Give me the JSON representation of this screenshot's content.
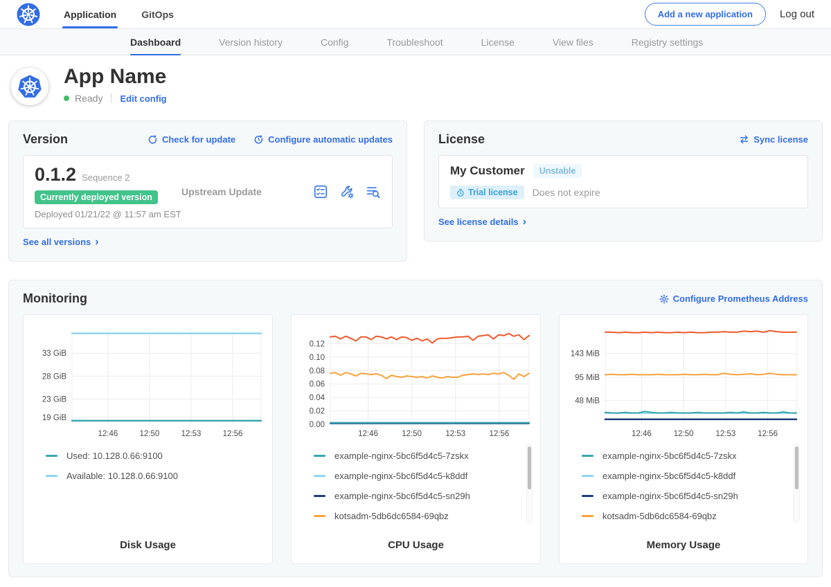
{
  "topnav": {
    "tabs": [
      {
        "label": "Application",
        "active": true
      },
      {
        "label": "GitOps",
        "active": false
      }
    ],
    "add_app_button": "Add a new application",
    "logout": "Log out"
  },
  "subnav": {
    "tabs": [
      {
        "label": "Dashboard",
        "active": true
      },
      {
        "label": "Version history",
        "active": false
      },
      {
        "label": "Config",
        "active": false
      },
      {
        "label": "Troubleshoot",
        "active": false
      },
      {
        "label": "License",
        "active": false
      },
      {
        "label": "View files",
        "active": false
      },
      {
        "label": "Registry settings",
        "active": false
      }
    ]
  },
  "app_header": {
    "title": "App Name",
    "status": "Ready",
    "edit_config": "Edit config"
  },
  "version_card": {
    "title": "Version",
    "check_for_update": "Check for update",
    "configure_auto_updates": "Configure automatic updates",
    "version": "0.1.2",
    "sequence": "Sequence 2",
    "deployed_badge": "Currently deployed version",
    "deployed_at": "Deployed 01/21/22 @ 11:57 am EST",
    "upstream": "Upstream Update",
    "see_all": "See all versions"
  },
  "license_card": {
    "title": "License",
    "sync": "Sync license",
    "customer": "My Customer",
    "channel": "Unstable",
    "type_badge": "Trial license",
    "expiry": "Does not expire",
    "see_details": "See license details"
  },
  "monitoring": {
    "title": "Monitoring",
    "configure_link": "Configure Prometheus Address"
  },
  "colors": {
    "accent_blue": "#326de6",
    "ready_green": "#44bb66",
    "deployed_badge_green": "#41c38a",
    "channel_badge_blue": "#85bbdc",
    "trial_badge_blue": "#3ba0dc",
    "series_teal": "#38a7ad",
    "series_light_blue": "#8fd4ee",
    "series_navy": "#1e3d7b",
    "series_orange": "#f9a13d",
    "series_red_orange": "#ee5a2d"
  },
  "chart_data": [
    {
      "type": "line",
      "title": "Disk Usage",
      "x_ticks": [
        "12:46",
        "12:50",
        "12:53",
        "12:56"
      ],
      "x_tick_pos": [
        0.19,
        0.41,
        0.63,
        0.85
      ],
      "ylim": [
        17.5,
        38
      ],
      "y_ticks": [
        {
          "value": 33,
          "label": "33 GiB"
        },
        {
          "value": 28,
          "label": "28 GiB"
        },
        {
          "value": 23,
          "label": "23 GiB"
        },
        {
          "value": 19,
          "label": "19 GiB"
        }
      ],
      "series": [
        {
          "label": "Available: 10.128.0.66:9100",
          "color": "#8fd4ee",
          "width": 2.5,
          "values": [
            37.3,
            37.3
          ]
        },
        {
          "label": "Used: 10.128.0.66:9100",
          "color": "#38a7ad",
          "width": 2.5,
          "values": [
            18.3,
            18.3
          ]
        }
      ],
      "legend": [
        {
          "label": "Used: 10.128.0.66:9100",
          "color": "#38a7ad"
        },
        {
          "label": "Available: 10.128.0.66:9100",
          "color": "#8fd4ee"
        }
      ]
    },
    {
      "type": "line",
      "title": "CPU Usage",
      "x_ticks": [
        "12:46",
        "12:50",
        "12:53",
        "12:56"
      ],
      "x_tick_pos": [
        0.19,
        0.41,
        0.63,
        0.85
      ],
      "ylim": [
        0,
        0.14
      ],
      "y_ticks": [
        {
          "value": 0.12,
          "label": "0.12"
        },
        {
          "value": 0.1,
          "label": "0.10"
        },
        {
          "value": 0.08,
          "label": "0.08"
        },
        {
          "value": 0.06,
          "label": "0.06"
        },
        {
          "value": 0.04,
          "label": "0.04"
        },
        {
          "value": 0.02,
          "label": "0.02"
        },
        {
          "value": 0,
          "label": "0.00"
        }
      ],
      "series": [
        {
          "label": "example-nginx-5bc6f5d4c5-k8ddf",
          "color": "#8fd4ee",
          "width": 2,
          "values": [
            0.001,
            0.001
          ]
        },
        {
          "label": "example-nginx-5bc6f5d4c5-sn29h",
          "color": "#1e3d7b",
          "width": 2,
          "values": [
            0.0015,
            0.0015
          ]
        },
        {
          "label": "example-nginx-5bc6f5d4c5-7zskx",
          "color": "#38a7ad",
          "width": 2,
          "values": [
            0.0025,
            0.0025
          ]
        },
        {
          "label": "kotsadm-5db6dc6584-69qbz",
          "color": "#f9a13d",
          "width": 2,
          "values": [
            0.076,
            0.077,
            0.073,
            0.077,
            0.075,
            0.072,
            0.076,
            0.075,
            0.074,
            0.075,
            0.073,
            0.068,
            0.073,
            0.071,
            0.07,
            0.072,
            0.071,
            0.07,
            0.071,
            0.069,
            0.072,
            0.07,
            0.069,
            0.071,
            0.07,
            0.07,
            0.073,
            0.074,
            0.075,
            0.074,
            0.075,
            0.074,
            0.076,
            0.075,
            0.077,
            0.073,
            0.067,
            0.075,
            0.071,
            0.076
          ]
        },
        {
          "label": "",
          "color": "#ee5a2d",
          "width": 2,
          "values": [
            0.13,
            0.131,
            0.127,
            0.131,
            0.128,
            0.124,
            0.13,
            0.13,
            0.126,
            0.131,
            0.13,
            0.127,
            0.13,
            0.126,
            0.13,
            0.129,
            0.125,
            0.128,
            0.124,
            0.127,
            0.121,
            0.127,
            0.128,
            0.128,
            0.129,
            0.13,
            0.13,
            0.131,
            0.125,
            0.131,
            0.132,
            0.133,
            0.127,
            0.133,
            0.132,
            0.135,
            0.131,
            0.133,
            0.126,
            0.132
          ]
        }
      ],
      "legend": [
        {
          "label": "example-nginx-5bc6f5d4c5-7zskx",
          "color": "#38a7ad"
        },
        {
          "label": "example-nginx-5bc6f5d4c5-k8ddf",
          "color": "#8fd4ee"
        },
        {
          "label": "example-nginx-5bc6f5d4c5-sn29h",
          "color": "#1e3d7b"
        },
        {
          "label": "kotsadm-5db6dc6584-69qbz",
          "color": "#f9a13d"
        }
      ]
    },
    {
      "type": "line",
      "title": "Memory Usage",
      "x_ticks": [
        "12:46",
        "12:50",
        "12:53",
        "12:56"
      ],
      "x_tick_pos": [
        0.19,
        0.41,
        0.63,
        0.85
      ],
      "ylim": [
        0,
        190
      ],
      "y_ticks": [
        {
          "value": 143,
          "label": "143 MiB"
        },
        {
          "value": 95,
          "label": "95 MiB"
        },
        {
          "value": 48,
          "label": "48 MiB"
        }
      ],
      "series": [
        {
          "label": "example-nginx-5bc6f5d4c5-k8ddf",
          "color": "#8fd4ee",
          "width": 2,
          "values": [
            22.5,
            22.5
          ]
        },
        {
          "label": "example-nginx-5bc6f5d4c5-sn29h",
          "color": "#1e3d7b",
          "width": 2.5,
          "values": [
            10,
            10
          ]
        },
        {
          "label": "example-nginx-5bc6f5d4c5-7zskx",
          "color": "#38a7ad",
          "width": 2,
          "values": [
            24,
            23,
            23,
            24,
            23,
            23,
            26,
            24,
            23,
            23,
            24,
            23,
            23,
            23,
            24,
            23,
            23,
            23,
            23,
            24,
            23,
            25,
            23,
            23,
            24,
            23,
            23,
            25,
            23,
            23
          ]
        },
        {
          "label": "kotsadm-5db6dc6584-69qbz",
          "color": "#f9a13d",
          "width": 2,
          "values": [
            100,
            101,
            100,
            100,
            101,
            100,
            100,
            100,
            101,
            100,
            100,
            100,
            101,
            100,
            100,
            101,
            100,
            100,
            103,
            101,
            100,
            101,
            102,
            100,
            101,
            103,
            101,
            100,
            100,
            100
          ]
        },
        {
          "label": "",
          "color": "#ee5a2d",
          "width": 2,
          "values": [
            186,
            186,
            185,
            186,
            185,
            185,
            186,
            185,
            186,
            185,
            185,
            186,
            185,
            186,
            185,
            185,
            186,
            186,
            187,
            186,
            186,
            188,
            187,
            188,
            186,
            189,
            187,
            186,
            186,
            186
          ]
        }
      ],
      "legend": [
        {
          "label": "example-nginx-5bc6f5d4c5-7zskx",
          "color": "#38a7ad"
        },
        {
          "label": "example-nginx-5bc6f5d4c5-k8ddf",
          "color": "#8fd4ee"
        },
        {
          "label": "example-nginx-5bc6f5d4c5-sn29h",
          "color": "#1e3d7b"
        },
        {
          "label": "kotsadm-5db6dc6584-69qbz",
          "color": "#f9a13d"
        }
      ]
    }
  ]
}
